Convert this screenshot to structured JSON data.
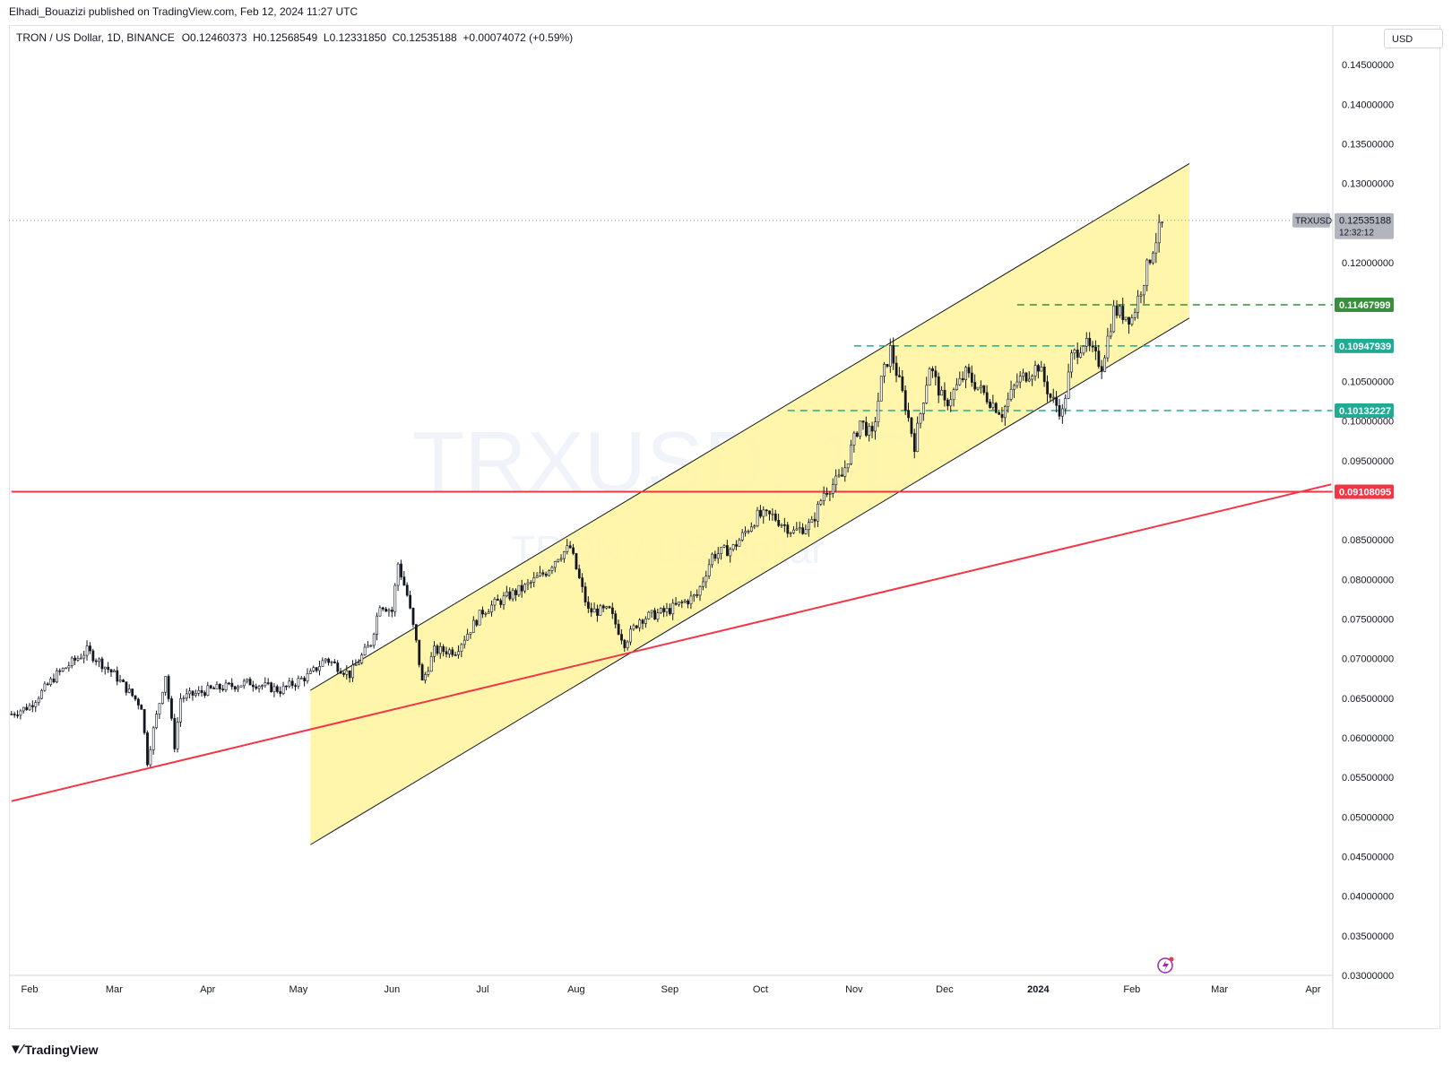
{
  "header": {
    "published": "Elhadi_Bouazizi published on TradingView.com, Feb 12, 2024 11:27 UTC"
  },
  "legend": {
    "symbol": "TRON / US Dollar, 1D, BINANCE",
    "open_label": "O",
    "open": "0.12460373",
    "high_label": "H",
    "high": "0.12568549",
    "low_label": "L",
    "low": "0.12331850",
    "close_label": "C",
    "close": "0.12535188",
    "change": "+0.00074072 (+0.59%)"
  },
  "currency_button": "USD",
  "watermark": {
    "line1": "TRXUSD, 1D",
    "line2": "TRON / US Dollar"
  },
  "footer": {
    "brand": "TradingView"
  },
  "colors": {
    "channel_fill": "#fff59d",
    "red_line": "#f23645",
    "green_tag": "#388e3c",
    "teal_tag": "#22ab94",
    "candle": "#131722",
    "last_price_tag": "#b2b5be"
  },
  "chart_data": {
    "type": "candlestick",
    "symbol": "TRXUSD",
    "timeframe": "1D",
    "ylim": [
      0.03,
      0.15
    ],
    "y_ticks": [
      "0.14500000",
      "0.14000000",
      "0.13500000",
      "0.13000000",
      "0.12000000",
      "0.10500000",
      "0.10000000",
      "0.09500000",
      "0.08500000",
      "0.08000000",
      "0.07500000",
      "0.07000000",
      "0.06500000",
      "0.06000000",
      "0.05500000",
      "0.05000000",
      "0.04500000",
      "0.04000000",
      "0.03500000",
      "0.03000000"
    ],
    "y_tick_values": [
      0.145,
      0.14,
      0.135,
      0.13,
      0.12,
      0.105,
      0.1,
      0.095,
      0.085,
      0.08,
      0.075,
      0.07,
      0.065,
      0.06,
      0.055,
      0.05,
      0.045,
      0.04,
      0.035,
      0.03
    ],
    "x_ticks": [
      "Feb",
      "Mar",
      "Apr",
      "May",
      "Jun",
      "Jul",
      "Aug",
      "Sep",
      "Oct",
      "Nov",
      "Dec",
      "2024",
      "Feb",
      "Mar",
      "Apr"
    ],
    "x_tick_dates": [
      "2023-02-01",
      "2023-03-01",
      "2023-04-01",
      "2023-05-01",
      "2023-06-01",
      "2023-07-01",
      "2023-08-01",
      "2023-09-01",
      "2023-10-01",
      "2023-11-01",
      "2023-12-01",
      "2024-01-01",
      "2024-02-01",
      "2024-03-01",
      "2024-04-01"
    ],
    "price_series": [
      [
        "2023-01-26",
        0.063
      ],
      [
        "2023-02-01",
        0.064
      ],
      [
        "2023-02-10",
        0.068
      ],
      [
        "2023-02-20",
        0.071
      ],
      [
        "2023-03-01",
        0.068
      ],
      [
        "2023-03-10",
        0.064
      ],
      [
        "2023-03-12",
        0.057
      ],
      [
        "2023-03-14",
        0.061
      ],
      [
        "2023-03-18",
        0.068
      ],
      [
        "2023-03-21",
        0.059
      ],
      [
        "2023-03-23",
        0.065
      ],
      [
        "2023-04-01",
        0.066
      ],
      [
        "2023-04-15",
        0.067
      ],
      [
        "2023-04-25",
        0.066
      ],
      [
        "2023-05-05",
        0.068
      ],
      [
        "2023-05-10",
        0.07
      ],
      [
        "2023-05-18",
        0.068
      ],
      [
        "2023-05-25",
        0.072
      ],
      [
        "2023-05-28",
        0.077
      ],
      [
        "2023-06-01",
        0.076
      ],
      [
        "2023-06-03",
        0.082
      ],
      [
        "2023-06-06",
        0.078
      ],
      [
        "2023-06-09",
        0.072
      ],
      [
        "2023-06-11",
        0.067
      ],
      [
        "2023-06-15",
        0.071
      ],
      [
        "2023-06-22",
        0.071
      ],
      [
        "2023-07-01",
        0.076
      ],
      [
        "2023-07-10",
        0.078
      ],
      [
        "2023-07-15",
        0.079
      ],
      [
        "2023-07-22",
        0.081
      ],
      [
        "2023-07-26",
        0.083
      ],
      [
        "2023-07-30",
        0.084
      ],
      [
        "2023-08-02",
        0.08
      ],
      [
        "2023-08-05",
        0.076
      ],
      [
        "2023-08-12",
        0.076
      ],
      [
        "2023-08-17",
        0.072
      ],
      [
        "2023-08-22",
        0.075
      ],
      [
        "2023-08-31",
        0.076
      ],
      [
        "2023-09-05",
        0.077
      ],
      [
        "2023-09-10",
        0.078
      ],
      [
        "2023-09-15",
        0.083
      ],
      [
        "2023-09-22",
        0.084
      ],
      [
        "2023-09-30",
        0.088
      ],
      [
        "2023-10-05",
        0.088
      ],
      [
        "2023-10-12",
        0.086
      ],
      [
        "2023-10-18",
        0.087
      ],
      [
        "2023-10-22",
        0.091
      ],
      [
        "2023-10-28",
        0.093
      ],
      [
        "2023-11-03",
        0.1
      ],
      [
        "2023-11-07",
        0.098
      ],
      [
        "2023-11-10",
        0.105
      ],
      [
        "2023-11-13",
        0.109
      ],
      [
        "2023-11-18",
        0.102
      ],
      [
        "2023-11-21",
        0.097
      ],
      [
        "2023-11-26",
        0.107
      ],
      [
        "2023-12-01",
        0.102
      ],
      [
        "2023-12-08",
        0.106
      ],
      [
        "2023-12-15",
        0.103
      ],
      [
        "2023-12-20",
        0.101
      ],
      [
        "2023-12-25",
        0.105
      ],
      [
        "2024-01-01",
        0.107
      ],
      [
        "2024-01-05",
        0.103
      ],
      [
        "2024-01-09",
        0.101
      ],
      [
        "2024-01-12",
        0.108
      ],
      [
        "2024-01-16",
        0.11
      ],
      [
        "2024-01-22",
        0.107
      ],
      [
        "2024-01-26",
        0.114
      ],
      [
        "2024-02-01",
        0.113
      ],
      [
        "2024-02-05",
        0.118
      ],
      [
        "2024-02-08",
        0.122
      ],
      [
        "2024-02-10",
        0.124
      ],
      [
        "2024-02-12",
        0.1254
      ]
    ],
    "last_price": {
      "symbol": "TRXUSD",
      "value": "0.12535188",
      "countdown": "12:32:12"
    },
    "annotations": {
      "channel": {
        "upper": [
          [
            "2023-05-05",
            0.066
          ],
          [
            "2024-02-20",
            0.1325
          ]
        ],
        "lower": [
          [
            "2023-05-05",
            0.0465
          ],
          [
            "2024-02-20",
            0.113
          ]
        ]
      },
      "horizontal_levels": [
        {
          "value": "0.11467999",
          "style": "dashed",
          "color": "green",
          "from": "2023-12-25"
        },
        {
          "value": "0.10947939",
          "style": "dashed",
          "color": "teal",
          "from": "2023-11-01"
        },
        {
          "value": "0.10132227",
          "style": "dashed",
          "color": "teal",
          "from": "2023-10-10"
        },
        {
          "value": "0.09108095",
          "style": "solid",
          "color": "red",
          "from": "2023-01-26"
        }
      ],
      "trendline": [
        [
          "2023-01-26",
          0.052
        ],
        [
          "2024-04-07",
          0.092
        ]
      ]
    }
  }
}
